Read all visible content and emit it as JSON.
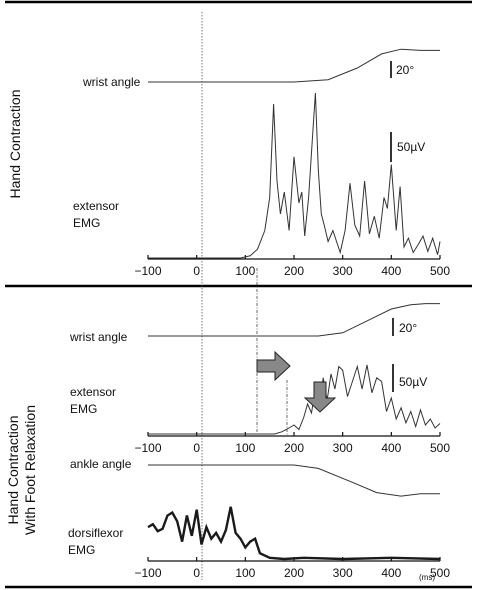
{
  "chart_data": {
    "type": "line",
    "x_ticks": [
      "−100",
      "0",
      "100",
      "200",
      "300",
      "400",
      "500"
    ],
    "x_unit": "(ms)",
    "xlim": [
      -100,
      500
    ],
    "panels": [
      {
        "condition": "Hand Contraction",
        "series": [
          {
            "name": "wrist angle",
            "scale_bar": "20°",
            "x": [
              -100,
              200,
              270,
              330,
              380,
              420,
              460,
              500
            ],
            "values": [
              0,
              0,
              2,
              12,
              24,
              28,
              27,
              27
            ]
          },
          {
            "name": "extensor EMG",
            "scale_bar": "50µV",
            "x": [
              -100,
              90,
              110,
              125,
              140,
              150,
              158,
              165,
              172,
              180,
              190,
              200,
              210,
              216,
              222,
              230,
              238,
              244,
              250,
              256,
              262,
              270,
              280,
              295,
              305,
              315,
              325,
              335,
              345,
              355,
              365,
              375,
              385,
              392,
              400,
              410,
              418,
              426,
              435,
              445,
              455,
              465,
              475,
              485,
              495,
              500
            ],
            "values": [
              0,
              0,
              2,
              8,
              25,
              55,
              140,
              70,
              40,
              60,
              25,
              92,
              50,
              60,
              20,
              55,
              110,
              150,
              80,
              40,
              30,
              15,
              25,
              5,
              25,
              68,
              30,
              20,
              70,
              22,
              38,
              18,
              55,
              45,
              85,
              25,
              65,
              10,
              18,
              5,
              12,
              20,
              6,
              18,
              3,
              15
            ]
          }
        ]
      },
      {
        "condition": "Hand Contraction With Foot Relaxation",
        "series": [
          {
            "name": "wrist angle",
            "scale_bar": "20°",
            "x": [
              -100,
              250,
              300,
              350,
              400,
              440,
              470,
              500
            ],
            "values": [
              0,
              0,
              3,
              14,
              25,
              29,
              30,
              30
            ]
          },
          {
            "name": "extensor EMG",
            "scale_bar": "50µV",
            "x": [
              -100,
              160,
              175,
              190,
              200,
              210,
              220,
              228,
              236,
              244,
              252,
              260,
              268,
              276,
              284,
              292,
              300,
              310,
              320,
              330,
              340,
              350,
              360,
              370,
              380,
              390,
              400,
              410,
              420,
              430,
              440,
              450,
              460,
              470,
              480,
              490,
              500
            ],
            "values": [
              0,
              0,
              3,
              8,
              12,
              6,
              22,
              40,
              28,
              60,
              35,
              75,
              45,
              80,
              60,
              90,
              85,
              50,
              70,
              90,
              60,
              92,
              55,
              75,
              70,
              30,
              48,
              20,
              35,
              15,
              30,
              10,
              32,
              12,
              20,
              8,
              14
            ]
          },
          {
            "name": "ankle angle",
            "x": [
              -100,
              200,
              250,
              320,
              370,
              420,
              460,
              500
            ],
            "values": [
              0,
              0,
              -3,
              -15,
              -24,
              -27,
              -25,
              -25
            ]
          },
          {
            "name": "dorsiflexor EMG",
            "x": [
              -100,
              -90,
              -80,
              -70,
              -60,
              -50,
              -40,
              -30,
              -20,
              -10,
              0,
              10,
              20,
              30,
              40,
              50,
              60,
              70,
              80,
              90,
              100,
              110,
              120,
              130,
              150,
              180,
              220,
              300,
              400,
              500
            ],
            "values": [
              55,
              60,
              48,
              52,
              75,
              80,
              65,
              30,
              75,
              40,
              85,
              25,
              55,
              35,
              45,
              30,
              50,
              90,
              45,
              35,
              20,
              30,
              35,
              10,
              2,
              0,
              2,
              0,
              2,
              0
            ]
          }
        ]
      }
    ],
    "annotations": [
      "right arrow showing onset delay in extensor EMG",
      "down arrow showing reduced extensor EMG amplitude"
    ]
  }
}
